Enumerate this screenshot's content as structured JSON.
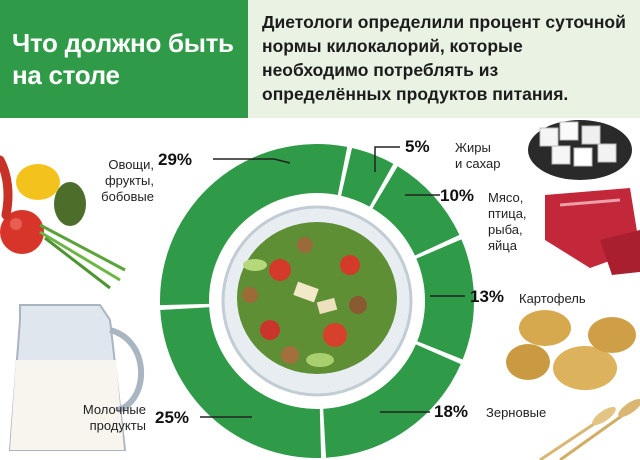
{
  "title": "Что должно быть на столе",
  "subtitle": "Диетологи определили процент суточной нормы килокалорий, которые необходимо потреблять из определённых продуктов питания.",
  "colors": {
    "green": "#2f9a47",
    "header_bg": "#eaf2e4"
  },
  "chart_data": {
    "type": "pie",
    "variant": "donut",
    "slices": [
      {
        "name": "Жиры и сахар",
        "value": 5,
        "label": "5%"
      },
      {
        "name": "Мясо, птица, рыба, яйца",
        "value": 10,
        "label": "10%"
      },
      {
        "name": "Картофель",
        "value": 13,
        "label": "13%"
      },
      {
        "name": "Зерновые",
        "value": 18,
        "label": "18%"
      },
      {
        "name": "Молочные продукты",
        "value": 25,
        "label": "25%"
      },
      {
        "name": "Овощи, фрукты, бобовые",
        "value": 29,
        "label": "29%"
      }
    ]
  },
  "labels": {
    "fats": [
      "Жиры",
      "и сахар"
    ],
    "meat": [
      "Мясо,",
      "птица,",
      "рыба,",
      "яйца"
    ],
    "potato": [
      "Картофель"
    ],
    "grain": [
      "Зерновые"
    ],
    "dairy": [
      "Молочные",
      "продукты"
    ],
    "veg": [
      "Овощи,",
      "фрукты,",
      "бобовые"
    ]
  }
}
